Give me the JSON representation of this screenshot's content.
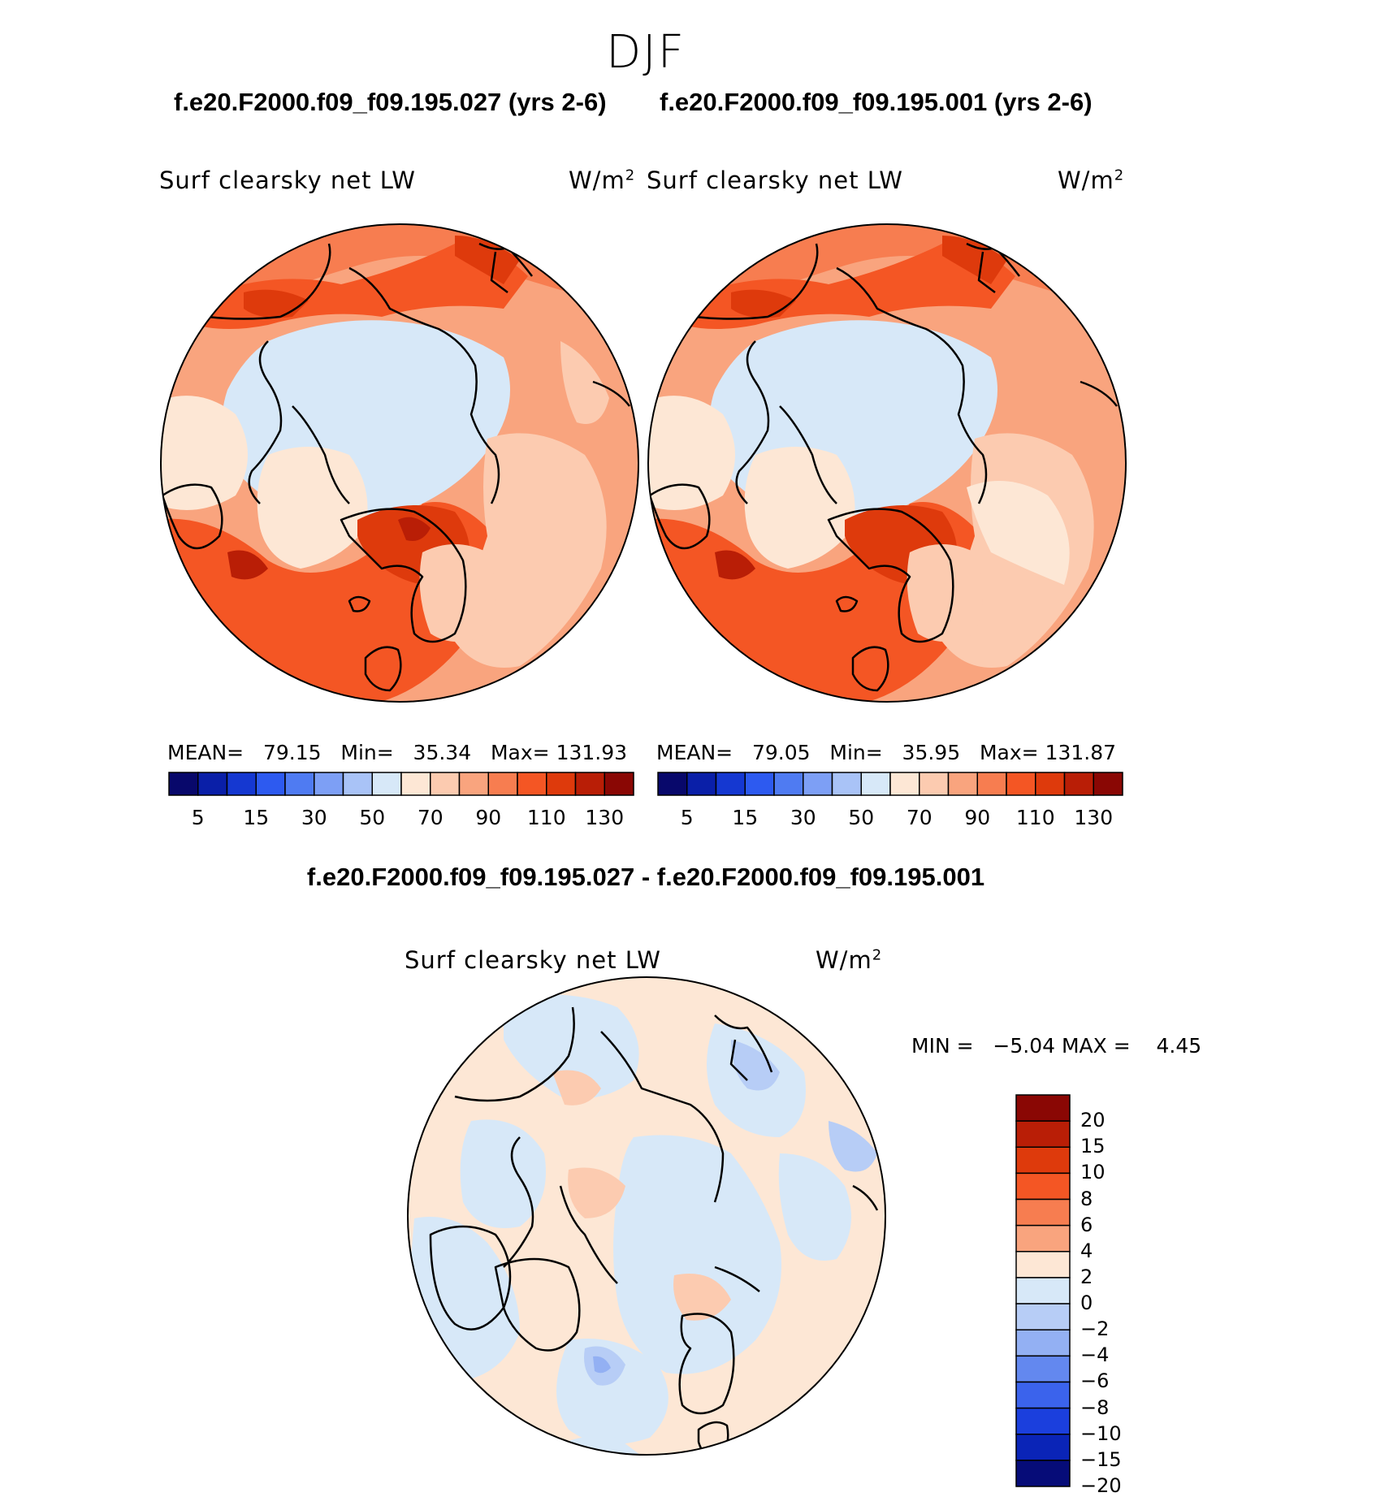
{
  "figure": {
    "season": "DJF",
    "panels": [
      {
        "run_title": "f.e20.F2000.f09_f09.195.027 (yrs 2-6)",
        "variable": "Surf clearsky net LW",
        "units_base": "W/m",
        "units_exp": "2",
        "stats": {
          "mean_label": "MEAN=",
          "mean": "79.15",
          "min_label": "Min=",
          "min": "35.34",
          "max_label": "Max=",
          "max": "131.93"
        }
      },
      {
        "run_title": "f.e20.F2000.f09_f09.195.001 (yrs 2-6)",
        "variable": "Surf clearsky net LW",
        "units_base": "W/m",
        "units_exp": "2",
        "stats": {
          "mean_label": "MEAN=",
          "mean": "79.05",
          "min_label": "Min=",
          "min": "35.95",
          "max_label": "Max=",
          "max": "131.87"
        }
      }
    ],
    "field_colorbar": {
      "colors": [
        "#08086b",
        "#0a1fa8",
        "#1538d1",
        "#2d5af0",
        "#4f7bf2",
        "#7d9ff5",
        "#a9c3f7",
        "#d7e8f8",
        "#fde7d5",
        "#fccbb0",
        "#f9a47e",
        "#f77d50",
        "#f45624",
        "#de3a0c",
        "#b91e06",
        "#8a0704"
      ],
      "tick_labels": [
        "5",
        "15",
        "30",
        "50",
        "70",
        "90",
        "110",
        "130"
      ]
    },
    "difference": {
      "title": "f.e20.F2000.f09_f09.195.027 - f.e20.F2000.f09_f09.195.001",
      "variable": "Surf clearsky net LW",
      "units_base": "W/m",
      "units_exp": "2",
      "min_label": "MIN =",
      "min": "−5.04",
      "max_label": "MAX =",
      "max": "4.45",
      "colorbar": {
        "colors_top_to_bottom": [
          "#8a0704",
          "#b91e06",
          "#de3a0c",
          "#f45624",
          "#f77d50",
          "#f9a47e",
          "#fde7d5",
          "#d7e8f8",
          "#b7cdf6",
          "#93b0f3",
          "#6388ef",
          "#3b63ec",
          "#1b3fdd",
          "#0a24b7",
          "#060c78"
        ],
        "tick_labels": [
          "20",
          "15",
          "10",
          "8",
          "6",
          "4",
          "2",
          "0",
          "−2",
          "−4",
          "−6",
          "−8",
          "−10",
          "−15",
          "−20"
        ]
      }
    }
  }
}
